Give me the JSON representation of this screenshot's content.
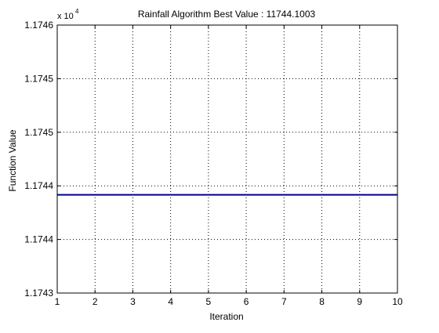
{
  "chart_data": {
    "type": "line",
    "title": "Rainfall Algorithm Best Value : 11744.1003",
    "xlabel": "Iteration",
    "ylabel": "Function Value",
    "exponent_label": "x 10",
    "exponent_power": "4",
    "xlim": [
      1,
      10
    ],
    "ylim": [
      1.1743,
      1.1746
    ],
    "x_ticks": [
      1,
      2,
      3,
      4,
      5,
      6,
      7,
      8,
      9,
      10
    ],
    "x_tick_labels": [
      "1",
      "2",
      "3",
      "4",
      "5",
      "6",
      "7",
      "8",
      "9",
      "10"
    ],
    "y_ticks": [
      1.1743,
      1.17436,
      1.17442,
      1.17448,
      1.17454,
      1.1746
    ],
    "y_tick_labels": [
      "1.1743",
      "1.1744",
      "1.1744",
      "1.1745",
      "1.1745",
      "1.1746"
    ],
    "grid": true,
    "series": [
      {
        "color": "#00008b",
        "x": [
          1,
          2,
          3,
          4,
          5,
          6,
          7,
          8,
          9,
          10
        ],
        "y": [
          1.174410003,
          1.174410003,
          1.174410003,
          1.174410003,
          1.174410003,
          1.174410003,
          1.174410003,
          1.174410003,
          1.174410003,
          1.174410003
        ]
      }
    ]
  }
}
